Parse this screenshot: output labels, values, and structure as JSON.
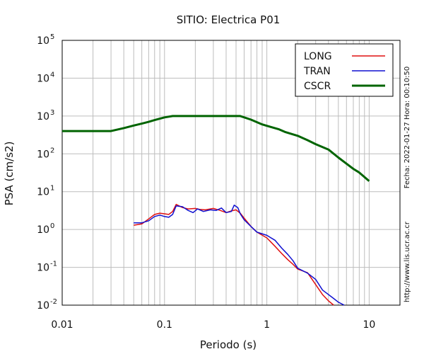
{
  "chart_data": {
    "type": "line",
    "title": "SITIO: Electrica P01",
    "xlabel": "Periodo (s)",
    "ylabel": "PSA (cm/s2)",
    "xscale": "log",
    "yscale": "log",
    "xlim": [
      0.01,
      20
    ],
    "ylim": [
      0.01,
      100000
    ],
    "grid": true,
    "legend_position": "top-right",
    "x_ticks": [
      {
        "value": 0.01,
        "label": "0.01"
      },
      {
        "value": 0.1,
        "label": "0.1"
      },
      {
        "value": 1,
        "label": "1"
      },
      {
        "value": 10,
        "label": "10"
      }
    ],
    "y_ticks": [
      {
        "value": 0.01,
        "base": "10",
        "exp": "-2"
      },
      {
        "value": 0.1,
        "base": "10",
        "exp": "-1"
      },
      {
        "value": 1,
        "base": "10",
        "exp": "0"
      },
      {
        "value": 10,
        "base": "10",
        "exp": "1"
      },
      {
        "value": 100,
        "base": "10",
        "exp": "2"
      },
      {
        "value": 1000,
        "base": "10",
        "exp": "3"
      },
      {
        "value": 10000,
        "base": "10",
        "exp": "4"
      },
      {
        "value": 100000,
        "base": "10",
        "exp": "5"
      }
    ],
    "side_annotation_date": "Fecha: 2022-01-27  Hora: 00:10:50",
    "side_annotation_url": "http://www.lis.ucr.ac.cr",
    "series": [
      {
        "name": "LONG",
        "color": "#e01010",
        "width": 1.5,
        "points": [
          [
            0.05,
            1.3
          ],
          [
            0.06,
            1.4
          ],
          [
            0.07,
            1.9
          ],
          [
            0.08,
            2.5
          ],
          [
            0.09,
            2.7
          ],
          [
            0.1,
            2.6
          ],
          [
            0.11,
            2.5
          ],
          [
            0.12,
            3.0
          ],
          [
            0.13,
            4.6
          ],
          [
            0.15,
            3.8
          ],
          [
            0.17,
            3.5
          ],
          [
            0.2,
            3.6
          ],
          [
            0.22,
            3.4
          ],
          [
            0.25,
            3.3
          ],
          [
            0.3,
            3.6
          ],
          [
            0.35,
            3.2
          ],
          [
            0.4,
            2.8
          ],
          [
            0.45,
            3.1
          ],
          [
            0.5,
            3.3
          ],
          [
            0.55,
            2.7
          ],
          [
            0.6,
            2.0
          ],
          [
            0.7,
            1.2
          ],
          [
            0.8,
            0.85
          ],
          [
            1.0,
            0.6
          ],
          [
            1.2,
            0.36
          ],
          [
            1.4,
            0.23
          ],
          [
            1.6,
            0.16
          ],
          [
            1.8,
            0.12
          ],
          [
            2.0,
            0.09
          ],
          [
            2.5,
            0.072
          ],
          [
            3.0,
            0.035
          ],
          [
            3.5,
            0.019
          ],
          [
            4.0,
            0.013
          ],
          [
            4.5,
            0.01
          ]
        ]
      },
      {
        "name": "TRAN",
        "color": "#1010d0",
        "width": 1.5,
        "points": [
          [
            0.05,
            1.5
          ],
          [
            0.06,
            1.5
          ],
          [
            0.07,
            1.7
          ],
          [
            0.08,
            2.2
          ],
          [
            0.09,
            2.4
          ],
          [
            0.1,
            2.2
          ],
          [
            0.11,
            2.1
          ],
          [
            0.12,
            2.5
          ],
          [
            0.13,
            4.2
          ],
          [
            0.15,
            4.0
          ],
          [
            0.17,
            3.2
          ],
          [
            0.19,
            2.8
          ],
          [
            0.21,
            3.5
          ],
          [
            0.24,
            3.0
          ],
          [
            0.28,
            3.3
          ],
          [
            0.32,
            3.2
          ],
          [
            0.36,
            3.7
          ],
          [
            0.4,
            2.8
          ],
          [
            0.45,
            3.0
          ],
          [
            0.48,
            4.4
          ],
          [
            0.52,
            3.8
          ],
          [
            0.55,
            2.6
          ],
          [
            0.6,
            1.8
          ],
          [
            0.7,
            1.2
          ],
          [
            0.8,
            0.85
          ],
          [
            1.0,
            0.7
          ],
          [
            1.2,
            0.52
          ],
          [
            1.4,
            0.32
          ],
          [
            1.6,
            0.22
          ],
          [
            1.8,
            0.15
          ],
          [
            2.0,
            0.095
          ],
          [
            2.5,
            0.07
          ],
          [
            3.0,
            0.048
          ],
          [
            3.5,
            0.025
          ],
          [
            4.5,
            0.015
          ],
          [
            5.0,
            0.012
          ],
          [
            5.7,
            0.01
          ]
        ]
      },
      {
        "name": "CSCR",
        "color": "#006400",
        "width": 3,
        "points": [
          [
            0.01,
            400
          ],
          [
            0.03,
            400
          ],
          [
            0.04,
            480
          ],
          [
            0.05,
            560
          ],
          [
            0.06,
            630
          ],
          [
            0.07,
            700
          ],
          [
            0.08,
            780
          ],
          [
            0.1,
            920
          ],
          [
            0.12,
            1000
          ],
          [
            0.15,
            1000
          ],
          [
            0.2,
            1000
          ],
          [
            0.3,
            1000
          ],
          [
            0.4,
            1000
          ],
          [
            0.55,
            1000
          ],
          [
            0.7,
            800
          ],
          [
            0.9,
            600
          ],
          [
            1.0,
            550
          ],
          [
            1.3,
            450
          ],
          [
            1.5,
            380
          ],
          [
            2.0,
            300
          ],
          [
            2.5,
            230
          ],
          [
            3.0,
            180
          ],
          [
            4.0,
            130
          ],
          [
            5.0,
            80
          ],
          [
            6.0,
            55
          ],
          [
            7.0,
            40
          ],
          [
            8.0,
            32
          ],
          [
            10.0,
            19
          ]
        ]
      }
    ]
  }
}
